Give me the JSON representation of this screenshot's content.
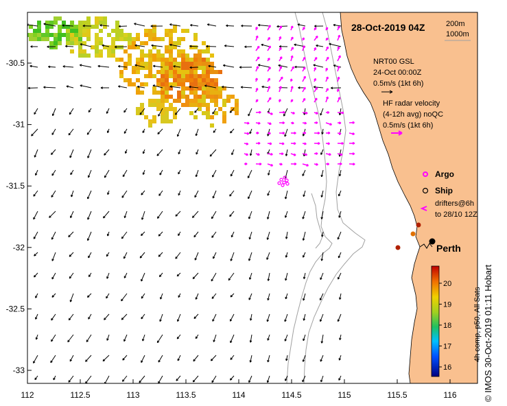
{
  "title": "28-Oct-2019 04Z",
  "depth_contours": [
    "200m",
    "1000m"
  ],
  "axes": {
    "x_ticks": [
      112,
      112.5,
      113,
      113.5,
      114,
      114.5,
      115,
      115.5,
      116
    ],
    "x_tick_labels": [
      "112",
      "112.5",
      "113",
      "113.5",
      "114",
      "114.5",
      "115",
      "115.5",
      "116"
    ],
    "y_ticks": [
      -30.5,
      -31,
      -31.5,
      -32,
      -32.5,
      -33
    ],
    "y_tick_labels": [
      "-30.5",
      "-31",
      "-31.5",
      "-32",
      "-32.5",
      "-33"
    ]
  },
  "legend": {
    "sst_source_line1": "NRT00 GSL",
    "sst_source_line2": "24-Oct 00:00Z",
    "black_scale": "0.5m/s (1kt 6h)",
    "hf_line1": "HF radar velocity",
    "hf_line2": "(4-12h avg) noQC",
    "hf_scale": "0.5m/s (1kt 6h)",
    "argo": "Argo",
    "ship": "Ship",
    "drifters_line1": "drifters@6h",
    "drifters_line2": "to 28/10 12Z"
  },
  "city": "Perth",
  "colorbar": {
    "ticks": [
      16,
      17,
      18,
      19,
      20
    ],
    "tick_labels": [
      "16",
      "17",
      "18",
      "19",
      "20"
    ],
    "label": "4h comp, p50, All Sats"
  },
  "credit": "© IMOS 30-Oct-2019 01:11 Hobart",
  "colors": {
    "land": "#f9c08f",
    "hf_arrow": "#ff00ff",
    "contour": "#a0a0a0"
  }
}
